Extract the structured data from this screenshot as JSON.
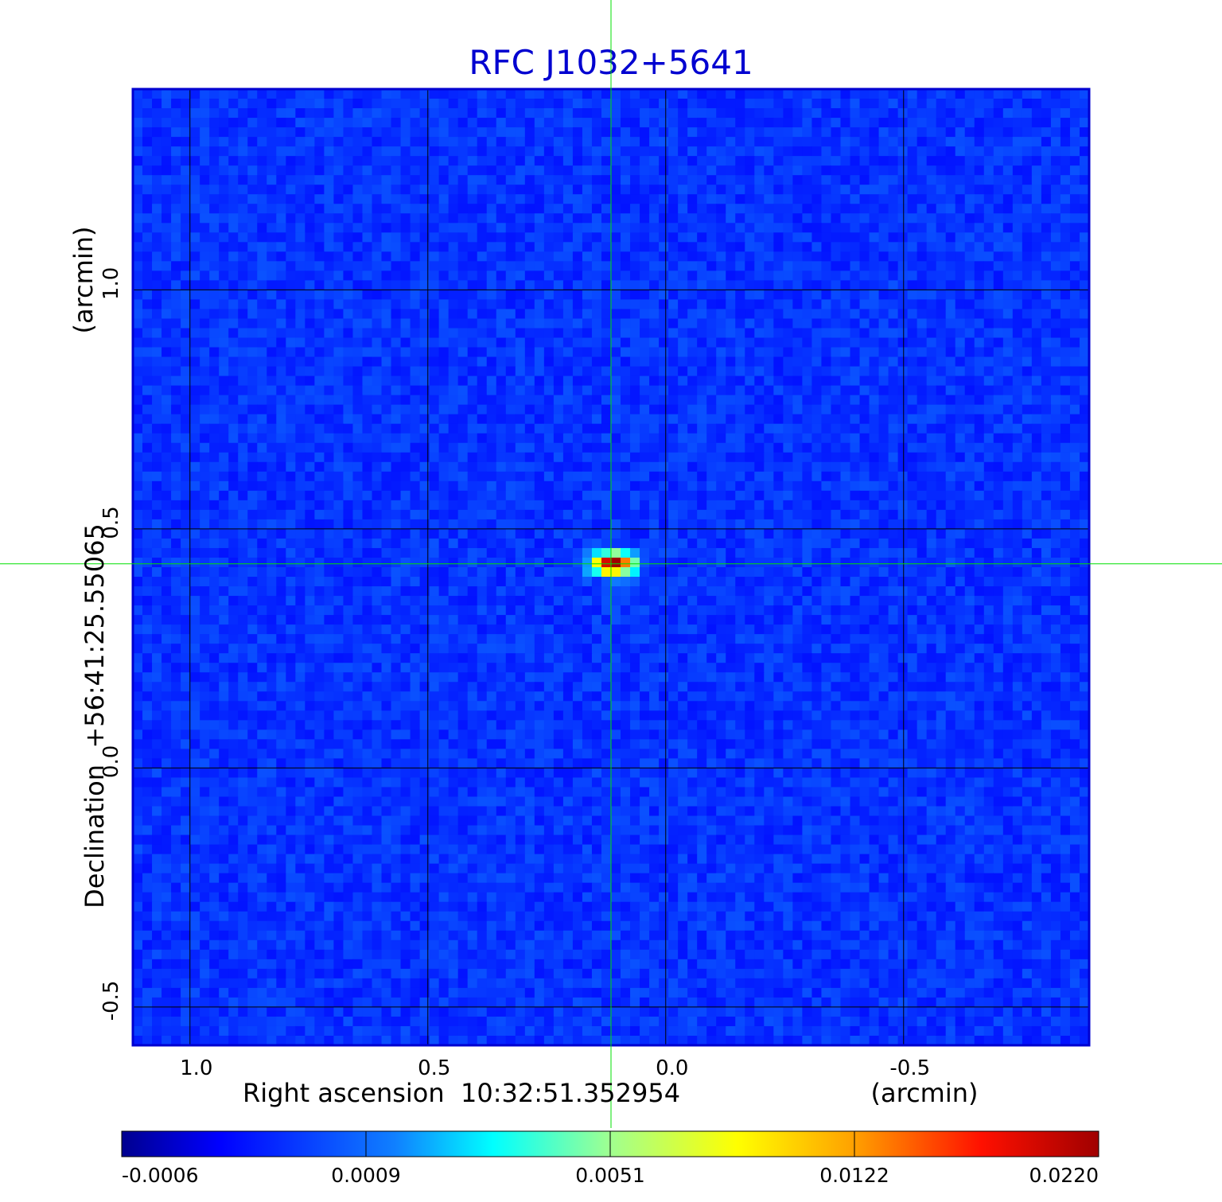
{
  "chart_data": {
    "type": "heatmap",
    "title": "RFC J1032+5641",
    "xlabel": "Right ascension  10:32:51.352954",
    "xunit": "(arcmin)",
    "ylabel": "Declination  +56:41:25.55065",
    "yunit": "(arcmin)",
    "xlim": [
      1.12,
      -0.89
    ],
    "ylim": [
      -0.58,
      1.42
    ],
    "x_ticks": [
      1.0,
      0.5,
      0.0,
      -0.5
    ],
    "x_tick_labels": [
      "1.0",
      "0.5",
      "0.0",
      "-0.5"
    ],
    "y_ticks": [
      -0.5,
      0.0,
      0.5,
      1.0
    ],
    "y_tick_labels": [
      "-0.5",
      "0.0",
      "0.5",
      "1.0"
    ],
    "grid": true,
    "crosshair": {
      "x": 0.115,
      "y": 0.427
    },
    "peak": {
      "x": 0.11,
      "y": 0.427,
      "value": 0.022
    },
    "background_level": -0.0003,
    "colorbar": {
      "tick_labels": [
        "-0.0006",
        "0.0009",
        "0.0051",
        "0.0122",
        "0.0220"
      ],
      "colormap": [
        "#00008f",
        "#0000ff",
        "#00b0ff",
        "#00ffff",
        "#80ffa0",
        "#ffff00",
        "#ff8000",
        "#ff0000",
        "#800000"
      ]
    }
  }
}
